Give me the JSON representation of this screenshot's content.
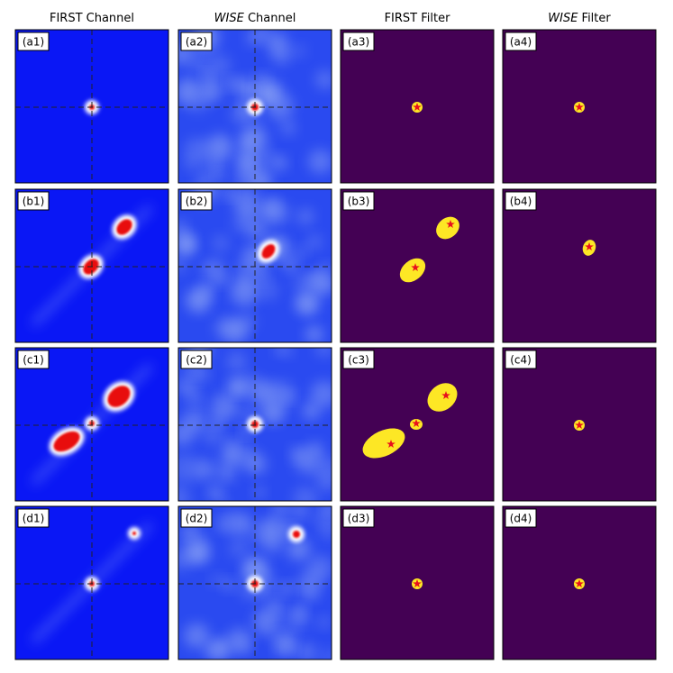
{
  "headers": [
    [
      "FIRST Channel"
    ],
    [
      "WISE",
      " Channel"
    ],
    [
      "FIRST Filter"
    ],
    [
      "WISE",
      " Filter"
    ]
  ],
  "panel_labels": [
    [
      "(a1)",
      "(a2)",
      "(a3)",
      "(a4)"
    ],
    [
      "(b1)",
      "(b2)",
      "(b3)",
      "(b4)"
    ],
    [
      "(c1)",
      "(c2)",
      "(c3)",
      "(c4)"
    ],
    [
      "(d1)",
      "(d2)",
      "(d3)",
      "(d4)"
    ]
  ]
}
